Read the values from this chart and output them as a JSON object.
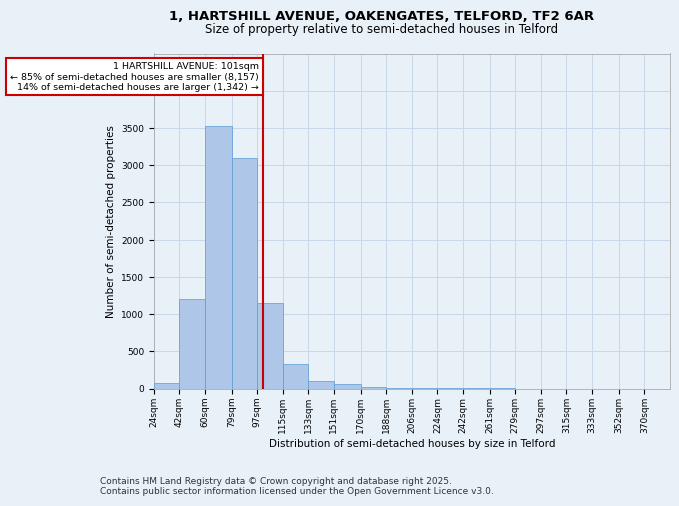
{
  "title1": "1, HARTSHILL AVENUE, OAKENGATES, TELFORD, TF2 6AR",
  "title2": "Size of property relative to semi-detached houses in Telford",
  "xlabel": "Distribution of semi-detached houses by size in Telford",
  "ylabel": "Number of semi-detached properties",
  "footer1": "Contains HM Land Registry data © Crown copyright and database right 2025.",
  "footer2": "Contains public sector information licensed under the Open Government Licence v3.0.",
  "property_size": 101,
  "annotation_line1": "1 HARTSHILL AVENUE: 101sqm",
  "annotation_line2": "← 85% of semi-detached houses are smaller (8,157)",
  "annotation_line3": "14% of semi-detached houses are larger (1,342) →",
  "bar_edges": [
    24,
    42,
    60,
    79,
    97,
    115,
    133,
    151,
    170,
    188,
    206,
    224,
    242,
    261,
    279,
    297,
    315,
    333,
    352,
    370,
    388
  ],
  "bar_heights": [
    80,
    1200,
    3520,
    3100,
    1150,
    330,
    95,
    55,
    20,
    10,
    5,
    2,
    1,
    1,
    0,
    0,
    0,
    0,
    0,
    0
  ],
  "bar_color": "#aec6e8",
  "bar_edge_color": "#5b9bd5",
  "vline_x": 101,
  "vline_color": "#cc0000",
  "ylim": [
    0,
    4500
  ],
  "yticks": [
    0,
    500,
    1000,
    1500,
    2000,
    2500,
    3000,
    3500,
    4000
  ],
  "grid_color": "#c8d8e8",
  "bg_color": "#e8f0f8",
  "annotation_box_color": "#cc0000",
  "title1_fontsize": 9.5,
  "title2_fontsize": 8.5,
  "axis_fontsize": 7.5,
  "tick_fontsize": 6.5,
  "footer_fontsize": 6.5
}
